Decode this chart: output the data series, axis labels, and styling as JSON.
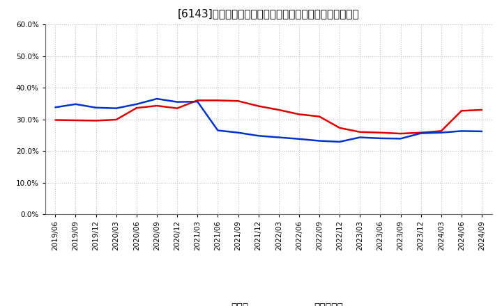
{
  "title": "[6143]　現須金、有利子負債の総資産に対する比率の推移",
  "x_labels": [
    "2019/06",
    "2019/09",
    "2019/12",
    "2020/03",
    "2020/06",
    "2020/09",
    "2020/12",
    "2021/03",
    "2021/06",
    "2021/09",
    "2021/12",
    "2022/03",
    "2022/06",
    "2022/09",
    "2022/12",
    "2023/03",
    "2023/06",
    "2023/09",
    "2023/12",
    "2024/03",
    "2024/06",
    "2024/09"
  ],
  "genkin": [
    0.298,
    0.297,
    0.296,
    0.299,
    0.336,
    0.343,
    0.335,
    0.36,
    0.36,
    0.358,
    0.342,
    0.33,
    0.316,
    0.309,
    0.273,
    0.26,
    0.258,
    0.255,
    0.258,
    0.263,
    0.327,
    0.33
  ],
  "yuriko": [
    0.338,
    0.348,
    0.337,
    0.335,
    0.348,
    0.365,
    0.355,
    0.356,
    0.265,
    0.258,
    0.248,
    0.243,
    0.238,
    0.232,
    0.229,
    0.243,
    0.24,
    0.239,
    0.256,
    0.258,
    0.263,
    0.262
  ],
  "genkin_color": "#dd0000",
  "yuriko_color": "#0033cc",
  "ylim": [
    0.0,
    0.6
  ],
  "yticks": [
    0.0,
    0.1,
    0.2,
    0.3,
    0.4,
    0.5,
    0.6
  ],
  "background_color": "#ffffff",
  "grid_color": "#bbbbbb",
  "legend_genkin": "現須金",
  "legend_yuriko": "有利子負債",
  "title_fontsize": 11,
  "tick_fontsize": 7.5,
  "legend_fontsize": 10
}
